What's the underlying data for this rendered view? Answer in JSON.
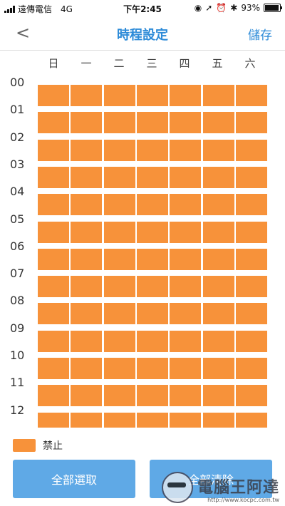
{
  "status_bar": {
    "carrier": "遠傳電信",
    "network": "4G",
    "time": "下午2:45",
    "battery": "93%",
    "battery_level": 0.93,
    "icons": [
      "orientation-lock-icon",
      "location-icon",
      "alarm-icon",
      "bluetooth-icon"
    ]
  },
  "nav": {
    "back_icon": "chevron-left-icon",
    "title": "時程設定",
    "save_label": "儲存"
  },
  "weekdays": [
    "日",
    "一",
    "二",
    "三",
    "四",
    "五",
    "六"
  ],
  "hours": [
    "00",
    "01",
    "02",
    "03",
    "04",
    "05",
    "06",
    "07",
    "08",
    "09",
    "10",
    "11",
    "12"
  ],
  "schedule": {
    "state": "禁止",
    "all_cells_blocked": true,
    "visible_rows": 13
  },
  "legend": {
    "label": "禁止",
    "color": "#f7923a"
  },
  "buttons": {
    "select_all": "全部選取",
    "clear_all": "全部清除"
  },
  "watermark": {
    "text": "電腦王阿達",
    "url": "http://www.kocpc.com.tw"
  },
  "colors": {
    "accent": "#2d8bd8",
    "button": "#5fa9e6",
    "blocked": "#f7923a"
  }
}
